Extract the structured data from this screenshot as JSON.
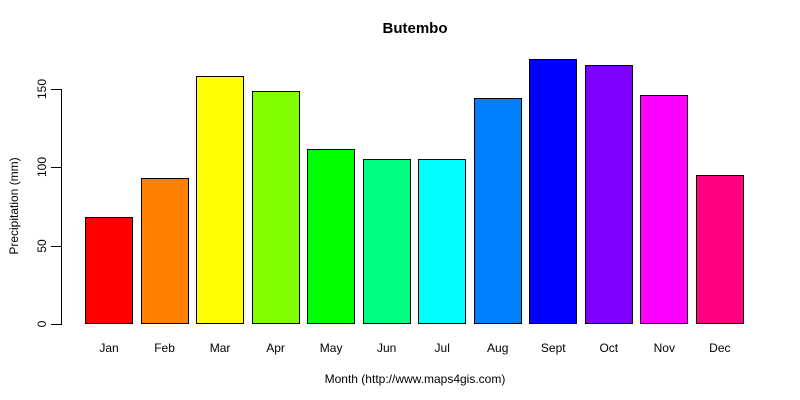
{
  "chart_data": {
    "type": "bar",
    "title": "Butembo",
    "xlabel": "Month (http://www.maps4gis.com)",
    "ylabel": "Precipitation (mm)",
    "categories": [
      "Jan",
      "Feb",
      "Mar",
      "Apr",
      "May",
      "Jun",
      "Jul",
      "Aug",
      "Sept",
      "Oct",
      "Nov",
      "Dec"
    ],
    "values": [
      68,
      93,
      158,
      149,
      112,
      105,
      105,
      144,
      169,
      165,
      146,
      95
    ],
    "bar_colors": [
      "#FF0000",
      "#FF8000",
      "#FFFF00",
      "#80FF00",
      "#00FF00",
      "#00FF80",
      "#00FFFF",
      "#0080FF",
      "#0000FF",
      "#8000FF",
      "#FF00FF",
      "#FF0080"
    ],
    "bar_border_color": "#000000",
    "yticks": [
      0,
      50,
      100,
      150
    ],
    "ylim": [
      0,
      172
    ],
    "ytick_labels_rotated": true,
    "grid": false,
    "legend": "none",
    "background_color": "#FFFFFF",
    "text_color": "#000000"
  }
}
